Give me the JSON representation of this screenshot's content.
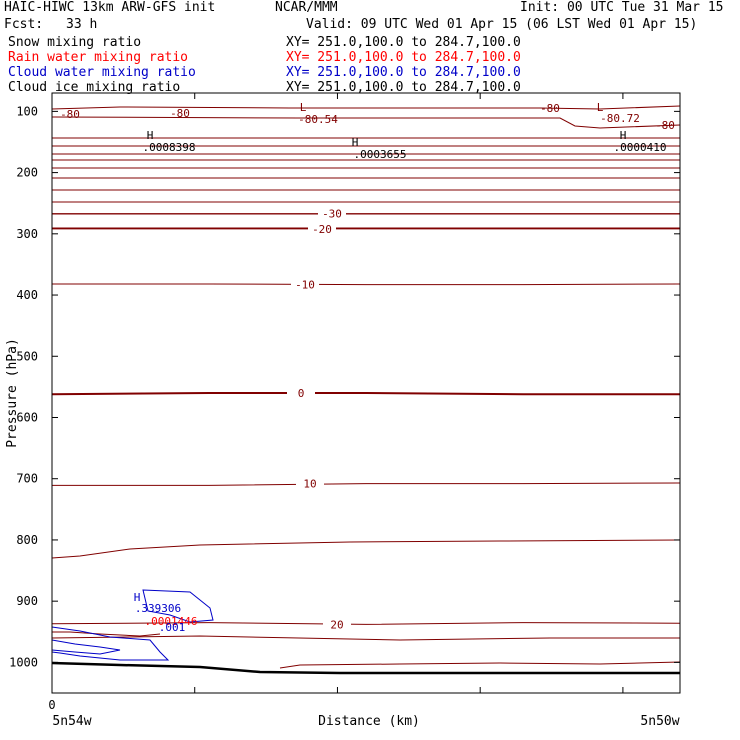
{
  "header": {
    "title": "HAIC-HIWC 13km ARW-GFS init",
    "org": "NCAR/MMM",
    "init": "Init: 00 UTC Tue 31 Mar 15",
    "fcst_label": "Fcst:",
    "fcst_value": "33 h",
    "valid": "Valid: 09 UTC Wed 01 Apr 15 (06 LST Wed 01 Apr 15)"
  },
  "fields": [
    {
      "name": "Snow mixing ratio",
      "xy": "XY= 251.0,100.0 to 284.7,100.0",
      "color": "#000000"
    },
    {
      "name": "Rain water mixing ratio",
      "xy": "XY= 251.0,100.0 to 284.7,100.0",
      "color": "#ff0000"
    },
    {
      "name": "Cloud water mixing ratio",
      "xy": "XY= 251.0,100.0 to 284.7,100.0",
      "color": "#0000c8"
    },
    {
      "name": "Cloud ice mixing ratio",
      "xy": "XY= 251.0,100.0 to 284.7,100.0",
      "color": "#000000"
    }
  ],
  "chart_data": {
    "type": "line",
    "xlabel": "Distance (km)",
    "ylabel": "Pressure (hPa)",
    "x_ticks": [
      "0"
    ],
    "x_end_labels": [
      "5n54w",
      "5n50w"
    ],
    "y_ticks": [
      "100",
      "200",
      "300",
      "400",
      "500",
      "600",
      "700",
      "800",
      "900",
      "1000"
    ],
    "ylim": [
      1050,
      70
    ],
    "temperature_contour_color": "#800000",
    "temperature_contours": [
      {
        "label": "-30",
        "p": [
          267,
          267,
          267,
          267,
          267
        ]
      },
      {
        "label": "-20",
        "p": [
          292,
          292,
          292,
          292,
          292
        ]
      },
      {
        "label": "-10",
        "p": [
          382,
          382,
          383,
          383,
          382
        ]
      },
      {
        "label": "0",
        "p": [
          562,
          560,
          560,
          562,
          562
        ]
      },
      {
        "label": "10",
        "p": [
          711,
          711,
          708,
          708,
          707
        ]
      },
      {
        "label": "20",
        "p": [
          937,
          935,
          938,
          935,
          936
        ]
      }
    ],
    "contour_labels": [
      {
        "text": "-80",
        "color": "#800000"
      },
      {
        "text": "-80",
        "color": "#800000"
      },
      {
        "text": "L",
        "color": "#800000"
      },
      {
        "text": "-80.54",
        "color": "#800000"
      },
      {
        "text": "-80",
        "color": "#800000"
      },
      {
        "text": "L",
        "color": "#800000"
      },
      {
        "text": "-80.72",
        "color": "#800000"
      },
      {
        "text": "-80",
        "color": "#800000"
      },
      {
        "text": "H",
        "color": "#000000"
      },
      {
        "text": ".0008398",
        "color": "#000000"
      },
      {
        "text": "H",
        "color": "#000000"
      },
      {
        "text": ".0003655",
        "color": "#000000"
      },
      {
        "text": "H",
        "color": "#000000"
      },
      {
        "text": ".0000410",
        "color": "#000000"
      },
      {
        "text": "H",
        "color": "#0000c8"
      },
      {
        "text": ".339306",
        "color": "#0000c8"
      },
      {
        "text": ".0001446",
        "color": "#ff0000"
      },
      {
        "text": ".001",
        "color": "#0000c8"
      }
    ]
  }
}
